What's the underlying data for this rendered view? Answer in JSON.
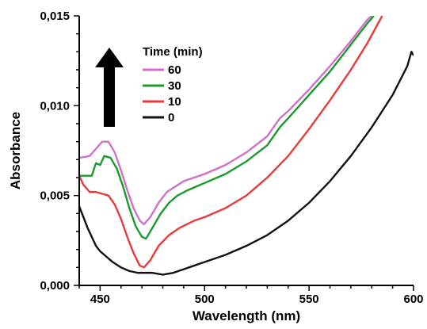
{
  "chart_data": {
    "type": "line",
    "xlabel": "Wavelength (nm)",
    "ylabel": "Absorbance",
    "xlim": [
      440,
      600
    ],
    "ylim": [
      0,
      0.015
    ],
    "x_ticks": [
      450,
      500,
      550,
      600
    ],
    "y_ticks": [
      0,
      0.005,
      0.01,
      0.015
    ],
    "x_tick_labels": [
      "450",
      "500",
      "550",
      "600"
    ],
    "y_tick_labels": [
      "0,000",
      "0,005",
      "0,010",
      "0,015"
    ],
    "grid": false,
    "legend": {
      "title": "Time (min)",
      "placement": "top-left"
    },
    "annotation": {
      "type": "arrow",
      "direction": "up",
      "color": "#000000"
    },
    "series": [
      {
        "name": "60",
        "color": "#d070c8",
        "points": [
          [
            440,
            0.0071
          ],
          [
            445,
            0.0072
          ],
          [
            448,
            0.0076
          ],
          [
            451,
            0.008
          ],
          [
            454,
            0.008
          ],
          [
            457,
            0.0074
          ],
          [
            460,
            0.0064
          ],
          [
            463,
            0.0053
          ],
          [
            466,
            0.0043
          ],
          [
            469,
            0.0036
          ],
          [
            471,
            0.0034
          ],
          [
            474,
            0.0038
          ],
          [
            478,
            0.0046
          ],
          [
            482,
            0.0052
          ],
          [
            486,
            0.0055
          ],
          [
            490,
            0.0058
          ],
          [
            495,
            0.006
          ],
          [
            500,
            0.0062
          ],
          [
            510,
            0.0067
          ],
          [
            520,
            0.0074
          ],
          [
            530,
            0.0083
          ],
          [
            536,
            0.0093
          ],
          [
            540,
            0.0097
          ],
          [
            550,
            0.0109
          ],
          [
            560,
            0.0122
          ],
          [
            570,
            0.0136
          ],
          [
            578,
            0.0148
          ],
          [
            580,
            0.015
          ]
        ]
      },
      {
        "name": "30",
        "color": "#1a9a2a",
        "points": [
          [
            440,
            0.0061
          ],
          [
            444,
            0.0061
          ],
          [
            446,
            0.0061
          ],
          [
            448,
            0.0068
          ],
          [
            450,
            0.0067
          ],
          [
            452,
            0.0072
          ],
          [
            455,
            0.0071
          ],
          [
            458,
            0.0065
          ],
          [
            461,
            0.0055
          ],
          [
            464,
            0.0043
          ],
          [
            467,
            0.0033
          ],
          [
            470,
            0.0027
          ],
          [
            472,
            0.0026
          ],
          [
            475,
            0.0032
          ],
          [
            479,
            0.004
          ],
          [
            483,
            0.0046
          ],
          [
            487,
            0.005
          ],
          [
            492,
            0.0053
          ],
          [
            500,
            0.0057
          ],
          [
            510,
            0.0062
          ],
          [
            520,
            0.0069
          ],
          [
            530,
            0.0078
          ],
          [
            536,
            0.0088
          ],
          [
            540,
            0.0093
          ],
          [
            550,
            0.0106
          ],
          [
            560,
            0.0119
          ],
          [
            570,
            0.0134
          ],
          [
            578,
            0.0146
          ],
          [
            581,
            0.015
          ]
        ]
      },
      {
        "name": "10",
        "color": "#e83a3a",
        "points": [
          [
            440,
            0.0061
          ],
          [
            442,
            0.0056
          ],
          [
            445,
            0.0052
          ],
          [
            448,
            0.0052
          ],
          [
            451,
            0.0051
          ],
          [
            454,
            0.005
          ],
          [
            457,
            0.0045
          ],
          [
            460,
            0.0037
          ],
          [
            463,
            0.0027
          ],
          [
            466,
            0.0018
          ],
          [
            469,
            0.0011
          ],
          [
            471,
            0.001
          ],
          [
            474,
            0.0014
          ],
          [
            478,
            0.0022
          ],
          [
            483,
            0.0028
          ],
          [
            488,
            0.0032
          ],
          [
            495,
            0.0036
          ],
          [
            500,
            0.0038
          ],
          [
            510,
            0.0043
          ],
          [
            520,
            0.005
          ],
          [
            530,
            0.006
          ],
          [
            540,
            0.0072
          ],
          [
            550,
            0.0087
          ],
          [
            560,
            0.0103
          ],
          [
            570,
            0.012
          ],
          [
            578,
            0.0135
          ],
          [
            585,
            0.015
          ]
        ]
      },
      {
        "name": "0",
        "color": "#111111",
        "points": [
          [
            440,
            0.0044
          ],
          [
            442,
            0.0038
          ],
          [
            444,
            0.0032
          ],
          [
            446,
            0.0027
          ],
          [
            448,
            0.0022
          ],
          [
            450,
            0.0019
          ],
          [
            453,
            0.0016
          ],
          [
            456,
            0.0013
          ],
          [
            460,
            0.001
          ],
          [
            464,
            0.0008
          ],
          [
            468,
            0.0007
          ],
          [
            475,
            0.0007
          ],
          [
            480,
            0.0006
          ],
          [
            485,
            0.0007
          ],
          [
            490,
            0.0009
          ],
          [
            495,
            0.0011
          ],
          [
            500,
            0.0013
          ],
          [
            510,
            0.0017
          ],
          [
            520,
            0.0022
          ],
          [
            530,
            0.0028
          ],
          [
            540,
            0.0036
          ],
          [
            550,
            0.0046
          ],
          [
            560,
            0.0058
          ],
          [
            570,
            0.0072
          ],
          [
            580,
            0.0088
          ],
          [
            590,
            0.0106
          ],
          [
            597,
            0.0122
          ],
          [
            599,
            0.013
          ],
          [
            600,
            0.0128
          ]
        ]
      }
    ]
  }
}
